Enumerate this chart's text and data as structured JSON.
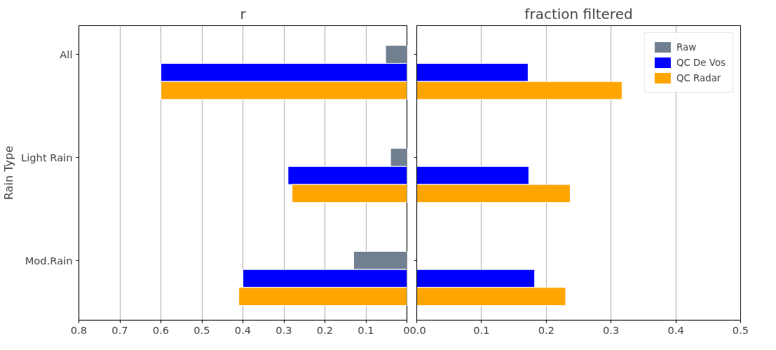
{
  "chart_data": [
    {
      "type": "bar",
      "orientation": "horizontal",
      "title": "r",
      "ylabel": "Rain Type",
      "categories": [
        "All",
        "Light Rain",
        "Mod.Rain"
      ],
      "series": [
        {
          "color": "#708090",
          "values": [
            0.052,
            0.04,
            0.13
          ]
        },
        {
          "color": "#0000ff",
          "values": [
            0.6,
            0.29,
            0.4
          ]
        },
        {
          "color": "#ffa500",
          "values": [
            0.6,
            0.28,
            0.41
          ]
        }
      ],
      "xlim": [
        0.8,
        0
      ],
      "xticks": [
        0.8,
        0.7,
        0.6,
        0.5,
        0.4,
        0.3,
        0.2,
        0.1,
        0
      ],
      "grid": "x"
    },
    {
      "type": "bar",
      "orientation": "horizontal",
      "title": "fraction filtered",
      "categories": [
        null,
        null,
        null
      ],
      "series": [
        {
          "name": "Raw",
          "color": "#708090",
          "values": [
            null,
            null,
            null
          ]
        },
        {
          "name": "QC De Vos",
          "color": "#0000ff",
          "values": [
            0.172,
            0.173,
            0.182
          ]
        },
        {
          "name": "QC Radar",
          "color": "#ffa500",
          "values": [
            0.317,
            0.237,
            0.23
          ]
        }
      ],
      "xlim": [
        0,
        0.5
      ],
      "xticks": [
        {
          "value": 0,
          "label": "0.0"
        },
        0.1,
        0.2,
        0.3,
        0.4,
        0.5
      ],
      "grid": "x",
      "legend": "top right",
      "tick_labels": "x"
    }
  ]
}
